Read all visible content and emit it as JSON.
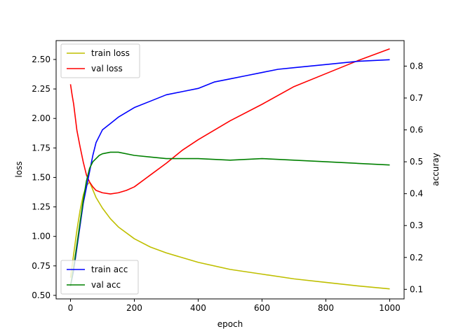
{
  "chart_data": {
    "type": "line",
    "title": "",
    "xlabel": "epoch",
    "ylabel_left": "loss",
    "ylabel_right": "accuray",
    "xlim": [
      -45,
      1045
    ],
    "ylim_left": [
      0.47,
      2.66
    ],
    "ylim_right": [
      0.07,
      0.88
    ],
    "x_ticks": [
      0,
      200,
      400,
      600,
      800,
      1000
    ],
    "y_left_ticks": [
      0.5,
      0.75,
      1.0,
      1.25,
      1.5,
      1.75,
      2.0,
      2.25,
      2.5
    ],
    "y_left_tick_labels": [
      "0.50",
      "0.75",
      "1.00",
      "1.25",
      "1.50",
      "1.75",
      "2.00",
      "2.25",
      "2.50"
    ],
    "y_right_ticks": [
      0.1,
      0.2,
      0.3,
      0.4,
      0.5,
      0.6,
      0.7,
      0.8
    ],
    "y_right_tick_labels": [
      "0.1",
      "0.2",
      "0.3",
      "0.4",
      "0.5",
      "0.6",
      "0.7",
      "0.8"
    ],
    "grid": false,
    "legends": [
      {
        "placement": "upper left",
        "entries": [
          "train loss",
          "val loss"
        ]
      },
      {
        "placement": "lower left",
        "entries": [
          "train acc",
          "val acc"
        ]
      }
    ],
    "series": [
      {
        "name": "train loss",
        "axis": "left",
        "color": "#bfbf00",
        "x": [
          0,
          10,
          20,
          30,
          40,
          50,
          60,
          80,
          100,
          125,
          150,
          200,
          250,
          300,
          350,
          400,
          500,
          600,
          700,
          800,
          900,
          1000
        ],
        "y": [
          0.65,
          0.85,
          1.05,
          1.22,
          1.35,
          1.43,
          1.46,
          1.33,
          1.24,
          1.15,
          1.08,
          0.98,
          0.91,
          0.86,
          0.82,
          0.78,
          0.72,
          0.68,
          0.64,
          0.61,
          0.58,
          0.555
        ]
      },
      {
        "name": "val loss",
        "axis": "left",
        "color": "#ff0000",
        "x": [
          0,
          5,
          10,
          20,
          30,
          40,
          50,
          60,
          70,
          80,
          100,
          125,
          150,
          175,
          200,
          250,
          300,
          350,
          400,
          500,
          600,
          700,
          800,
          900,
          1000
        ],
        "y": [
          2.29,
          2.2,
          2.12,
          1.9,
          1.76,
          1.63,
          1.52,
          1.46,
          1.42,
          1.39,
          1.37,
          1.36,
          1.37,
          1.39,
          1.42,
          1.52,
          1.62,
          1.73,
          1.82,
          1.98,
          2.12,
          2.27,
          2.38,
          2.49,
          2.59
        ]
      },
      {
        "name": "train acc",
        "axis": "right",
        "color": "#0000ff",
        "x": [
          0,
          10,
          20,
          30,
          40,
          50,
          60,
          70,
          80,
          90,
          100,
          125,
          150,
          200,
          250,
          300,
          350,
          400,
          450,
          500,
          550,
          600,
          650,
          700,
          800,
          900,
          1000
        ],
        "y": [
          0.11,
          0.16,
          0.23,
          0.3,
          0.37,
          0.42,
          0.47,
          0.52,
          0.56,
          0.58,
          0.6,
          0.62,
          0.64,
          0.67,
          0.69,
          0.71,
          0.72,
          0.73,
          0.75,
          0.76,
          0.77,
          0.78,
          0.79,
          0.795,
          0.805,
          0.815,
          0.82
        ]
      },
      {
        "name": "val acc",
        "axis": "right",
        "color": "#008000",
        "x": [
          0,
          10,
          20,
          30,
          40,
          50,
          60,
          70,
          80,
          90,
          100,
          125,
          150,
          200,
          250,
          300,
          350,
          400,
          500,
          600,
          700,
          800,
          900,
          1000
        ],
        "y": [
          0.11,
          0.17,
          0.24,
          0.31,
          0.38,
          0.44,
          0.48,
          0.5,
          0.51,
          0.52,
          0.525,
          0.53,
          0.53,
          0.52,
          0.515,
          0.51,
          0.51,
          0.51,
          0.505,
          0.51,
          0.505,
          0.5,
          0.495,
          0.49
        ]
      }
    ]
  }
}
